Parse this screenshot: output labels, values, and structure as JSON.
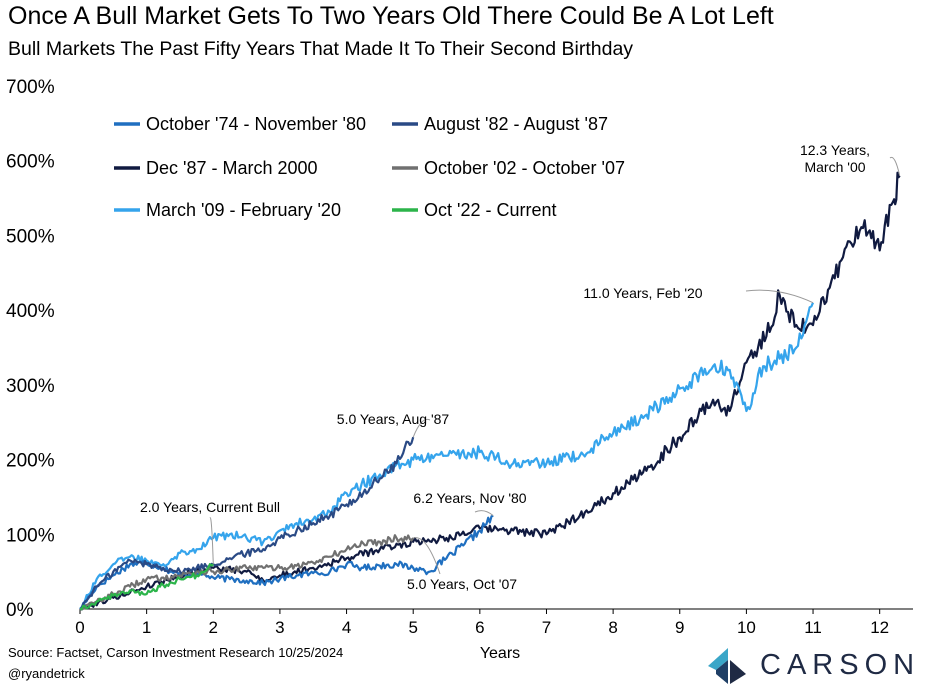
{
  "header": {
    "title": "Once A Bull Market Gets To Two Years Old There Could Be A Lot Left",
    "subtitle": "Bull Markets The Past Fifty Years That Made It To Their Second Birthday"
  },
  "footer": {
    "source": "Source: Factset, Carson Investment Research 10/25/2024",
    "handle": "@ryandetrick",
    "logo_text": "CARSON"
  },
  "chart_data": {
    "type": "line",
    "title": "Once A Bull Market Gets To Two Years Old There Could Be A Lot Left",
    "subtitle": "Bull Markets The Past Fifty Years That Made It To Their Second Birthday",
    "xlabel": "Years",
    "ylabel": "",
    "xlim": [
      0,
      12.5
    ],
    "ylim": [
      0,
      700
    ],
    "x_ticks": [
      0,
      1,
      2,
      3,
      4,
      5,
      6,
      7,
      8,
      9,
      10,
      11,
      12
    ],
    "y_ticks": [
      0,
      100,
      200,
      300,
      400,
      500,
      600,
      700
    ],
    "y_tick_labels": [
      "0%",
      "100%",
      "200%",
      "300%",
      "400%",
      "500%",
      "600%",
      "700%"
    ],
    "grid": false,
    "legend_position": "top-left",
    "series": [
      {
        "name": "October '74 - November '80",
        "color": "#1f6fc0",
        "x": [
          0,
          0.25,
          0.5,
          0.75,
          1.0,
          1.25,
          1.5,
          1.75,
          2.0,
          2.25,
          2.5,
          2.75,
          3.0,
          3.25,
          3.5,
          3.75,
          4.0,
          4.25,
          4.5,
          4.75,
          5.0,
          5.25,
          5.5,
          5.75,
          6.0,
          6.2
        ],
        "y": [
          0,
          30,
          45,
          60,
          62,
          55,
          45,
          48,
          42,
          40,
          38,
          35,
          40,
          45,
          48,
          50,
          60,
          55,
          58,
          60,
          55,
          50,
          68,
          85,
          105,
          125
        ]
      },
      {
        "name": "August '82 - August '87",
        "color": "#2a4a85",
        "x": [
          0,
          0.25,
          0.5,
          0.75,
          1.0,
          1.25,
          1.5,
          1.75,
          2.0,
          2.25,
          2.5,
          2.75,
          3.0,
          3.25,
          3.5,
          3.75,
          4.0,
          4.25,
          4.5,
          4.75,
          5.0
        ],
        "y": [
          0,
          30,
          50,
          65,
          60,
          55,
          50,
          55,
          60,
          68,
          75,
          80,
          95,
          105,
          115,
          125,
          140,
          155,
          175,
          195,
          230
        ]
      },
      {
        "name": "Dec '87 - March 2000",
        "color": "#101a40",
        "x": [
          0,
          0.5,
          1.0,
          1.5,
          2.0,
          2.5,
          2.8,
          3.0,
          3.5,
          4.0,
          4.5,
          5.0,
          5.5,
          6.0,
          6.5,
          7.0,
          7.5,
          8.0,
          8.5,
          9.0,
          9.5,
          9.75,
          10.0,
          10.3,
          10.5,
          10.75,
          11.0,
          11.25,
          11.5,
          11.75,
          12.0,
          12.2,
          12.3
        ],
        "y": [
          0,
          15,
          30,
          45,
          55,
          50,
          38,
          45,
          55,
          68,
          80,
          90,
          95,
          108,
          105,
          100,
          125,
          155,
          185,
          230,
          280,
          265,
          330,
          365,
          420,
          380,
          380,
          430,
          485,
          510,
          480,
          545,
          580
        ]
      },
      {
        "name": "October '02 - October '07",
        "color": "#707070",
        "x": [
          0,
          0.25,
          0.5,
          0.75,
          1.0,
          1.25,
          1.5,
          1.75,
          2.0,
          2.25,
          2.5,
          2.75,
          3.0,
          3.25,
          3.5,
          3.75,
          4.0,
          4.25,
          4.5,
          4.75,
          5.0
        ],
        "y": [
          0,
          10,
          20,
          30,
          40,
          42,
          45,
          50,
          50,
          52,
          55,
          55,
          55,
          58,
          62,
          70,
          80,
          88,
          90,
          95,
          95
        ]
      },
      {
        "name": "March '09 - February '20",
        "color": "#35a4ec",
        "x": [
          0,
          0.25,
          0.5,
          0.75,
          1.0,
          1.25,
          1.5,
          1.75,
          2.0,
          2.25,
          2.5,
          2.75,
          3.0,
          3.25,
          3.5,
          3.75,
          4.0,
          4.5,
          5.0,
          5.5,
          6.0,
          6.5,
          7.0,
          7.5,
          8.0,
          8.5,
          9.0,
          9.5,
          9.75,
          10.0,
          10.25,
          10.5,
          10.75,
          11.0
        ],
        "y": [
          0,
          40,
          60,
          70,
          65,
          60,
          75,
          80,
          95,
          100,
          95,
          90,
          105,
          115,
          120,
          130,
          155,
          180,
          200,
          205,
          210,
          195,
          195,
          205,
          235,
          260,
          295,
          325,
          320,
          265,
          325,
          335,
          350,
          410
        ]
      },
      {
        "name": "Oct '22 - Current",
        "color": "#2cb44a",
        "x": [
          0,
          0.25,
          0.5,
          0.75,
          1.0,
          1.25,
          1.5,
          1.75,
          2.0
        ],
        "y": [
          0,
          10,
          18,
          25,
          20,
          32,
          40,
          45,
          60
        ]
      }
    ],
    "annotations": [
      {
        "text": "2.0 Years, Current Bull",
        "x": 2.0,
        "y": 60
      },
      {
        "text": "5.0 Years, Aug '87",
        "x": 5.0,
        "y": 230
      },
      {
        "text": "6.2 Years, Nov '80",
        "x": 6.2,
        "y": 125
      },
      {
        "text": "5.0 Years, Oct '07",
        "x": 5.0,
        "y": 95
      },
      {
        "text": "11.0 Years, Feb '20",
        "x": 11.0,
        "y": 410
      },
      {
        "text": "12.3 Years,",
        "text2": "March '00",
        "x": 12.3,
        "y": 580
      }
    ]
  }
}
